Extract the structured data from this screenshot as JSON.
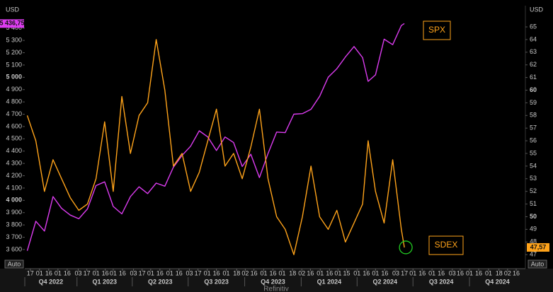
{
  "chart_data": {
    "type": "line",
    "y_label": "USD",
    "y2_label": "USD",
    "auto_label": "Auto",
    "source": "Refinitiv",
    "x": [
      "2022-10-12",
      "2022-10-26",
      "2022-11-09",
      "2022-11-23",
      "2022-12-07",
      "2022-12-21",
      "2023-01-04",
      "2023-01-18",
      "2023-02-01",
      "2023-02-15",
      "2023-03-01",
      "2023-03-15",
      "2023-03-29",
      "2023-04-12",
      "2023-04-26",
      "2023-05-10",
      "2023-05-24",
      "2023-06-07",
      "2023-06-21",
      "2023-07-05",
      "2023-07-19",
      "2023-08-02",
      "2023-08-16",
      "2023-08-30",
      "2023-09-13",
      "2023-09-27",
      "2023-10-11",
      "2023-10-25",
      "2023-11-08",
      "2023-11-22",
      "2023-12-06",
      "2023-12-20",
      "2024-01-03",
      "2024-01-17",
      "2024-01-31",
      "2024-02-14",
      "2024-02-28",
      "2024-03-13",
      "2024-03-27",
      "2024-04-10",
      "2024-04-19",
      "2024-05-01",
      "2024-05-15",
      "2024-05-29",
      "2024-06-12",
      "2024-06-17"
    ],
    "xlim": [
      "2022-10-08",
      "2024-12-31"
    ],
    "xticks": [
      {
        "value": "2022-10-17",
        "label": "17"
      },
      {
        "value": "2022-11-01",
        "label": "01"
      },
      {
        "value": "2022-11-16",
        "label": "16"
      },
      {
        "value": "2022-12-01",
        "label": "01"
      },
      {
        "value": "2022-12-16",
        "label": "16"
      },
      {
        "value": "2023-01-03",
        "label": "03"
      },
      {
        "value": "2023-01-17",
        "label": "17"
      },
      {
        "value": "2023-02-01",
        "label": "01"
      },
      {
        "value": "2023-02-16",
        "label": "16"
      },
      {
        "value": "2023-03-01",
        "label": "01"
      },
      {
        "value": "2023-03-16",
        "label": "16"
      },
      {
        "value": "2023-04-03",
        "label": "03"
      },
      {
        "value": "2023-04-17",
        "label": "17"
      },
      {
        "value": "2023-05-01",
        "label": "01"
      },
      {
        "value": "2023-05-16",
        "label": "16"
      },
      {
        "value": "2023-06-01",
        "label": "01"
      },
      {
        "value": "2023-06-16",
        "label": "16"
      },
      {
        "value": "2023-07-03",
        "label": "03"
      },
      {
        "value": "2023-07-17",
        "label": "17"
      },
      {
        "value": "2023-08-01",
        "label": "01"
      },
      {
        "value": "2023-08-16",
        "label": "16"
      },
      {
        "value": "2023-09-01",
        "label": "01"
      },
      {
        "value": "2023-09-18",
        "label": "18"
      },
      {
        "value": "2023-10-02",
        "label": "02"
      },
      {
        "value": "2023-10-16",
        "label": "16"
      },
      {
        "value": "2023-11-01",
        "label": "01"
      },
      {
        "value": "2023-11-16",
        "label": "16"
      },
      {
        "value": "2023-12-01",
        "label": "01"
      },
      {
        "value": "2023-12-18",
        "label": "18"
      },
      {
        "value": "2024-01-02",
        "label": "02"
      },
      {
        "value": "2024-01-16",
        "label": "16"
      },
      {
        "value": "2024-02-01",
        "label": "01"
      },
      {
        "value": "2024-02-16",
        "label": "16"
      },
      {
        "value": "2024-03-01",
        "label": "01"
      },
      {
        "value": "2024-03-15",
        "label": "15"
      },
      {
        "value": "2024-04-01",
        "label": "01"
      },
      {
        "value": "2024-04-16",
        "label": "16"
      },
      {
        "value": "2024-05-01",
        "label": "01"
      },
      {
        "value": "2024-05-16",
        "label": "16"
      },
      {
        "value": "2024-06-03",
        "label": "03"
      },
      {
        "value": "2024-06-17",
        "label": "17"
      },
      {
        "value": "2024-07-01",
        "label": "01"
      },
      {
        "value": "2024-07-16",
        "label": "16"
      },
      {
        "value": "2024-08-01",
        "label": "01"
      },
      {
        "value": "2024-08-16",
        "label": "16"
      },
      {
        "value": "2024-09-03",
        "label": "03"
      },
      {
        "value": "2024-09-16",
        "label": "16"
      },
      {
        "value": "2024-10-01",
        "label": "01"
      },
      {
        "value": "2024-10-16",
        "label": "16"
      },
      {
        "value": "2024-11-01",
        "label": "01"
      },
      {
        "value": "2024-11-18",
        "label": "18"
      },
      {
        "value": "2024-12-02",
        "label": "02"
      },
      {
        "value": "2024-12-16",
        "label": "16"
      }
    ],
    "quarters": [
      "Q4 2022",
      "Q1 2023",
      "Q2 2023",
      "Q3 2023",
      "Q4 2023",
      "Q1 2024",
      "Q2 2024",
      "Q3 2024",
      "Q4 2024"
    ],
    "ylim": [
      3502,
      5456
    ],
    "yticks": [
      {
        "value": 3600,
        "label": "3 600"
      },
      {
        "value": 3700,
        "label": "3 700"
      },
      {
        "value": 3800,
        "label": "3 800"
      },
      {
        "value": 3900,
        "label": "3 900"
      },
      {
        "value": 4000,
        "label": "4 000"
      },
      {
        "value": 4100,
        "label": "4 100"
      },
      {
        "value": 4200,
        "label": "4 200"
      },
      {
        "value": 4300,
        "label": "4 300"
      },
      {
        "value": 4400,
        "label": "4 400"
      },
      {
        "value": 4500,
        "label": "4 500"
      },
      {
        "value": 4600,
        "label": "4 600"
      },
      {
        "value": 4700,
        "label": "4 700"
      },
      {
        "value": 4800,
        "label": "4 800"
      },
      {
        "value": 4900,
        "label": "4 900"
      },
      {
        "value": 5000,
        "label": "5 000"
      },
      {
        "value": 5100,
        "label": "5 100"
      },
      {
        "value": 5200,
        "label": "5 200"
      },
      {
        "value": 5300,
        "label": "5 300"
      },
      {
        "value": 5400,
        "label": "5 400"
      }
    ],
    "y2lim": [
      46.45,
      65.45
    ],
    "y2ticks": [
      47,
      48,
      49,
      50,
      51,
      52,
      53,
      54,
      55,
      56,
      57,
      58,
      59,
      60,
      61,
      62,
      63,
      64,
      65
    ],
    "series": [
      {
        "name": "SPX",
        "color": "#dc3cf0",
        "axis": "y",
        "last_value_label": "5 436,75",
        "values": [
          3590,
          3830,
          3750,
          4030,
          3935,
          3880,
          3850,
          3930,
          4120,
          4150,
          3950,
          3890,
          4030,
          4110,
          4055,
          4140,
          4115,
          4270,
          4365,
          4440,
          4565,
          4515,
          4405,
          4515,
          4470,
          4275,
          4375,
          4185,
          4380,
          4555,
          4550,
          4700,
          4705,
          4740,
          4845,
          5000,
          5070,
          5165,
          5250,
          5160,
          4967,
          5020,
          5310,
          5265,
          5421,
          5436.75
        ]
      },
      {
        "name": "SDEX",
        "color": "#ffa31a",
        "axis": "y2",
        "last_value_label": "47,57",
        "values": [
          58,
          56,
          52,
          54.5,
          53,
          51.5,
          50.5,
          51,
          53,
          57.5,
          52,
          59.5,
          55,
          58,
          59,
          64,
          60,
          54,
          55,
          52,
          53.5,
          56,
          58.5,
          54,
          55,
          53,
          55.5,
          58.5,
          53,
          50,
          49,
          47,
          50,
          54,
          50,
          49,
          50.5,
          48,
          49.5,
          51,
          56,
          52,
          49.5,
          54.5,
          49,
          47.57
        ]
      }
    ]
  }
}
